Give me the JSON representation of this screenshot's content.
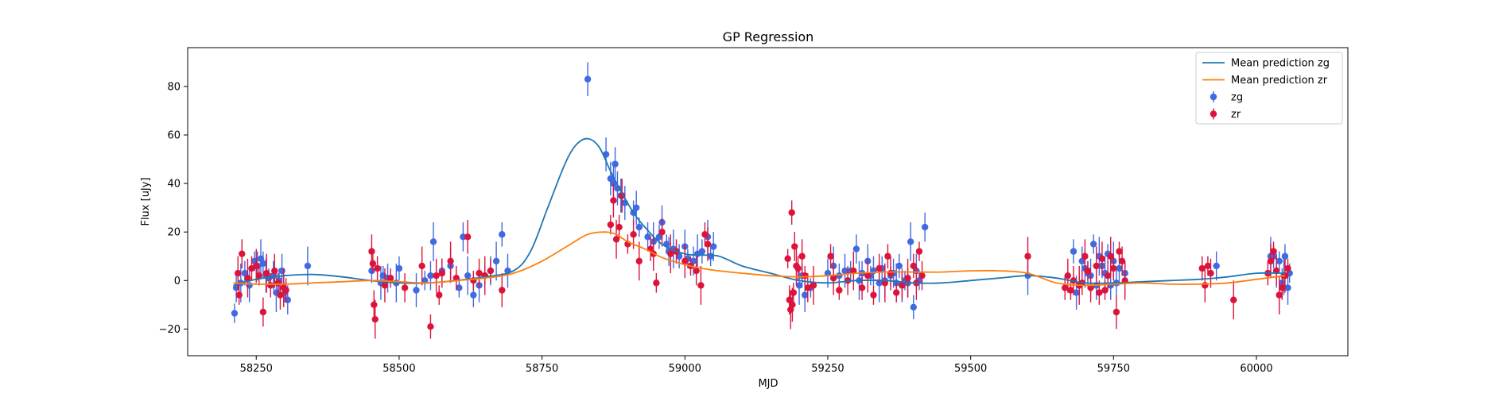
{
  "chart_data": {
    "type": "scatter",
    "title": "GP Regression",
    "xlabel": "MJD",
    "ylabel": "Flux [uJy]",
    "xlim": [
      58130,
      60160
    ],
    "ylim": [
      -31,
      96
    ],
    "xticks": [
      58250,
      58500,
      58750,
      59000,
      59250,
      59500,
      59750,
      60000
    ],
    "yticks": [
      -20,
      0,
      20,
      40,
      60,
      80
    ],
    "grid": false,
    "legend_position": "top-right",
    "lines": [
      {
        "name": "Mean prediction zg",
        "color": "#1f77b4",
        "x": [
          58210,
          58250,
          58300,
          58350,
          58400,
          58450,
          58500,
          58550,
          58600,
          58650,
          58700,
          58730,
          58760,
          58790,
          58810,
          58830,
          58850,
          58870,
          58890,
          58910,
          58930,
          58960,
          59000,
          59030,
          59060,
          59100,
          59150,
          59200,
          59250,
          59300,
          59350,
          59400,
          59450,
          59500,
          59550,
          59600,
          59650,
          59700,
          59750,
          59800,
          59850,
          59900,
          59950,
          60000,
          60050
        ],
        "y": [
          -2,
          0.5,
          2,
          2.5,
          1.5,
          0,
          -1,
          -1,
          0,
          1.5,
          4,
          12,
          30,
          48,
          56,
          58.5,
          55,
          45,
          36,
          28,
          22,
          15,
          11,
          10.5,
          10,
          6,
          3,
          0,
          -1,
          0,
          0,
          -1,
          -1,
          0,
          1,
          2,
          1,
          -1,
          -1,
          -0.5,
          0,
          0.5,
          1.5,
          3,
          3
        ]
      },
      {
        "name": "Mean prediction zr",
        "color": "#ff7f0e",
        "x": [
          58210,
          58250,
          58300,
          58350,
          58400,
          58450,
          58500,
          58550,
          58600,
          58650,
          58700,
          58750,
          58800,
          58830,
          58860,
          58880,
          58900,
          58930,
          58960,
          59000,
          59030,
          59060,
          59100,
          59150,
          59200,
          59250,
          59300,
          59350,
          59400,
          59450,
          59500,
          59550,
          59600,
          59650,
          59700,
          59750,
          59800,
          59850,
          59900,
          59950,
          60000,
          60050
        ],
        "y": [
          -1,
          -1.5,
          -1.5,
          -1,
          -0.5,
          0,
          -0.5,
          -1,
          0,
          1,
          3,
          8,
          15,
          19,
          20,
          19,
          16,
          13,
          9.5,
          6.5,
          5,
          4,
          3,
          2,
          1.5,
          2,
          3,
          3.5,
          3.5,
          3.5,
          4,
          4,
          3,
          -1,
          -2,
          -1.5,
          -1,
          -1.5,
          -1.5,
          -1,
          0.5,
          2
        ]
      }
    ],
    "series": [
      {
        "name": "zg",
        "color": "#4169e1",
        "x": [
          58212,
          58215,
          58223,
          58230,
          58238,
          58247,
          58252,
          58258,
          58262,
          58267,
          58272,
          58280,
          58285,
          58290,
          58295,
          58300,
          58305,
          58340,
          58452,
          58468,
          58472,
          58480,
          58495,
          58500,
          58530,
          58545,
          58555,
          58560,
          58575,
          58590,
          58605,
          58612,
          58620,
          58630,
          58640,
          58650,
          58660,
          58670,
          58680,
          58690,
          58830,
          58862,
          58870,
          58875,
          58878,
          58882,
          58888,
          58895,
          58910,
          58915,
          58920,
          58935,
          58945,
          58955,
          58960,
          58968,
          58972,
          58980,
          58990,
          59000,
          59005,
          59015,
          59022,
          59030,
          59040,
          59045,
          59050,
          59200,
          59205,
          59210,
          59220,
          59250,
          59260,
          59270,
          59280,
          59290,
          59300,
          59305,
          59310,
          59320,
          59325,
          59330,
          59340,
          59345,
          59350,
          59360,
          59365,
          59370,
          59375,
          59380,
          59385,
          59390,
          59395,
          59400,
          59405,
          59410,
          59420,
          59600,
          59680,
          59685,
          59690,
          59695,
          59700,
          59705,
          59710,
          59715,
          59720,
          59725,
          59730,
          59735,
          59740,
          59745,
          59750,
          59755,
          59760,
          59770,
          59930,
          60025,
          60030,
          60035,
          60040,
          60045,
          60048,
          60050,
          60055,
          60058
        ],
        "y": [
          -13.5,
          -3,
          -1,
          3,
          -2,
          8,
          6,
          9,
          7,
          2,
          1,
          2,
          -5,
          0,
          4,
          -5,
          -8,
          6,
          4,
          -1,
          2,
          1,
          -1,
          5,
          -4,
          0,
          2,
          16,
          4,
          6,
          -3,
          18,
          2,
          -6,
          -2,
          2,
          4,
          8,
          19,
          4,
          83,
          52,
          42,
          40,
          48,
          38,
          35,
          32,
          28,
          30,
          22,
          18,
          16,
          18,
          24,
          15,
          12,
          13,
          10,
          14,
          9,
          8,
          11,
          12,
          18,
          10,
          14,
          -2,
          2,
          -6,
          -3,
          3,
          6,
          2,
          4,
          4,
          13,
          0,
          3,
          8,
          2,
          4,
          -1,
          5,
          0,
          2,
          3,
          -1,
          6,
          -2,
          0,
          -1,
          16,
          -11,
          4,
          0,
          22,
          2,
          12,
          -5,
          -2,
          8,
          5,
          3,
          2,
          15,
          -2,
          10,
          6,
          3,
          11,
          -2,
          8,
          -1,
          5,
          3,
          6,
          10,
          10,
          4,
          8,
          -1,
          2,
          10,
          -3,
          3
        ]
      },
      {
        "name": "zr",
        "color": "#dc143c",
        "x": [
          58218,
          58220,
          58225,
          58235,
          58242,
          58250,
          58255,
          58262,
          58268,
          58275,
          58282,
          58288,
          58292,
          58298,
          58302,
          58452,
          58454,
          58456,
          58458,
          58462,
          58475,
          58485,
          58510,
          58540,
          58555,
          58565,
          58570,
          58575,
          58590,
          58600,
          58620,
          58630,
          58640,
          58650,
          58660,
          58680,
          58870,
          58875,
          58880,
          58885,
          58890,
          58900,
          58910,
          58920,
          58940,
          58945,
          58950,
          58960,
          58975,
          58985,
          59000,
          59010,
          59020,
          59028,
          59035,
          59040,
          59180,
          59183,
          59185,
          59187,
          59188,
          59190,
          59192,
          59195,
          59198,
          59205,
          59210,
          59215,
          59225,
          59255,
          59260,
          59270,
          59285,
          59295,
          59310,
          59320,
          59330,
          59340,
          59350,
          59355,
          59360,
          59370,
          59380,
          59390,
          59400,
          59405,
          59410,
          59415,
          59600,
          59665,
          59670,
          59675,
          59680,
          59690,
          59695,
          59700,
          59705,
          59710,
          59720,
          59725,
          59730,
          59735,
          59740,
          59745,
          59750,
          59755,
          59760,
          59765,
          59770,
          59905,
          59910,
          59915,
          59920,
          59960,
          60020,
          60025,
          60030,
          60035,
          60040,
          60045,
          60050,
          60055
        ],
        "y": [
          3,
          -6,
          11,
          1,
          5,
          6,
          2,
          -13,
          3,
          -2,
          4,
          -1,
          -6,
          -3,
          -4,
          12,
          7,
          -10,
          -16,
          5,
          -2,
          1,
          -3,
          6,
          -19,
          2,
          -6,
          3,
          8,
          1,
          18,
          0,
          3,
          2,
          4,
          -4,
          23,
          33,
          17,
          22,
          35,
          15,
          19,
          8,
          13,
          11,
          -1,
          20,
          11,
          12,
          8,
          6,
          4,
          -2,
          19,
          15,
          9,
          -8,
          -12,
          28,
          -10,
          -5,
          14,
          6,
          5,
          10,
          2,
          -3,
          -2,
          10,
          1,
          -4,
          0,
          4,
          -3,
          2,
          -6,
          5,
          -1,
          10,
          3,
          -5,
          -2,
          1,
          6,
          -1,
          12,
          2,
          10,
          -3,
          2,
          -4,
          0,
          -2,
          -1,
          10,
          4,
          -3,
          6,
          -5,
          9,
          -4,
          2,
          10,
          5,
          -13,
          12,
          8,
          0,
          5,
          -2,
          6,
          3,
          -8,
          3,
          8,
          12,
          4,
          -6,
          -3,
          2,
          5
        ]
      }
    ]
  }
}
